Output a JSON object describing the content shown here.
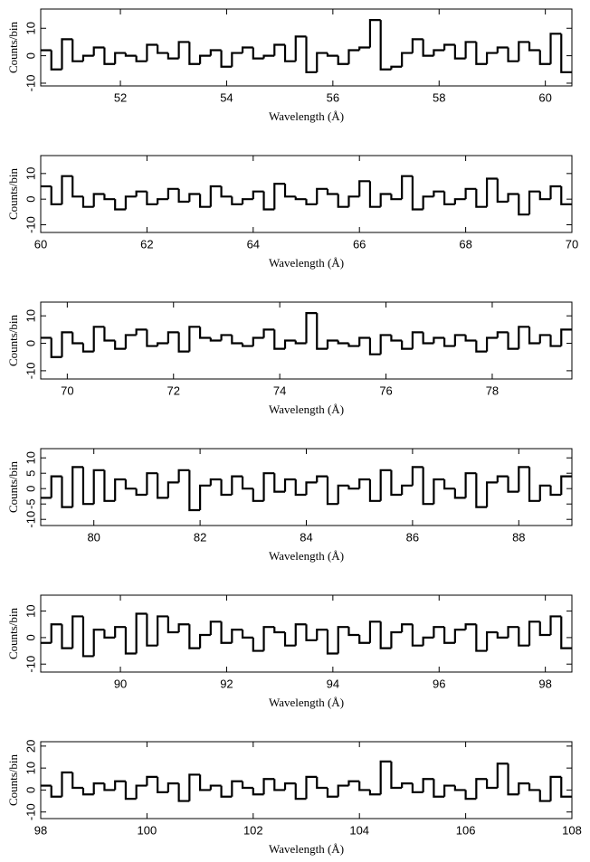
{
  "chart_data": [
    {
      "type": "step",
      "x_label": "Wavelength (Å)",
      "y_label": "Counts/bin",
      "color": "#000000",
      "xlim": [
        50.5,
        60.5
      ],
      "ylim": [
        -11,
        17
      ],
      "xticks": [
        52,
        54,
        56,
        58,
        60
      ],
      "yticks": [
        -10,
        0,
        10
      ],
      "x": [
        50.6,
        50.8,
        51,
        51.2,
        51.4,
        51.6,
        51.8,
        52,
        52.2,
        52.4,
        52.6,
        52.8,
        53,
        53.2,
        53.4,
        53.6,
        53.8,
        54,
        54.2,
        54.4,
        54.6,
        54.8,
        55,
        55.2,
        55.4,
        55.6,
        55.8,
        56,
        56.2,
        56.4,
        56.6,
        56.8,
        57,
        57.2,
        57.4,
        57.6,
        57.8,
        58,
        58.2,
        58.4,
        58.6,
        58.8,
        59,
        59.2,
        59.4,
        59.6,
        59.8,
        60,
        60.2,
        60.4
      ],
      "values": [
        2,
        -5,
        6,
        -2,
        0,
        3,
        -3,
        1,
        0,
        -2,
        4,
        1,
        -1,
        5,
        -3,
        0,
        2,
        -4,
        1,
        3,
        -1,
        0,
        4,
        -2,
        7,
        -6,
        1,
        0,
        -3,
        2,
        3,
        13,
        -5,
        -4,
        1,
        6,
        0,
        2,
        4,
        -1,
        5,
        -3,
        1,
        3,
        -2,
        5,
        2,
        -3,
        8,
        -6
      ]
    },
    {
      "type": "step",
      "x_label": "Wavelength (Å)",
      "y_label": "Counts/bin",
      "color": "#000000",
      "xlim": [
        60,
        70
      ],
      "ylim": [
        -13,
        17
      ],
      "xticks": [
        60,
        62,
        64,
        66,
        68,
        70
      ],
      "yticks": [
        -10,
        0,
        10
      ],
      "x": [
        60.1,
        60.3,
        60.5,
        60.7,
        60.9,
        61.1,
        61.3,
        61.5,
        61.7,
        61.9,
        62.1,
        62.3,
        62.5,
        62.7,
        62.9,
        63.1,
        63.3,
        63.5,
        63.7,
        63.9,
        64.1,
        64.3,
        64.5,
        64.7,
        64.9,
        65.1,
        65.3,
        65.5,
        65.7,
        65.9,
        66.1,
        66.3,
        66.5,
        66.7,
        66.9,
        67.1,
        67.3,
        67.5,
        67.7,
        67.9,
        68.1,
        68.3,
        68.5,
        68.7,
        68.9,
        69.1,
        69.3,
        69.5,
        69.7,
        69.9
      ],
      "values": [
        5,
        -2,
        9,
        1,
        -3,
        2,
        0,
        -4,
        1,
        3,
        -2,
        0,
        4,
        -1,
        2,
        -3,
        5,
        1,
        -2,
        0,
        3,
        -4,
        6,
        1,
        0,
        -2,
        4,
        2,
        -3,
        1,
        7,
        -3,
        2,
        0,
        9,
        -4,
        1,
        3,
        -2,
        0,
        4,
        -3,
        8,
        -1,
        2,
        -6,
        3,
        0,
        5,
        -2
      ]
    },
    {
      "type": "step",
      "x_label": "Wavelength (Å)",
      "y_label": "Counts/bin",
      "color": "#000000",
      "xlim": [
        69.5,
        79.5
      ],
      "ylim": [
        -13,
        15
      ],
      "xticks": [
        70,
        72,
        74,
        76,
        78
      ],
      "yticks": [
        -10,
        0,
        10
      ],
      "x": [
        69.6,
        69.8,
        70,
        70.2,
        70.4,
        70.6,
        70.8,
        71,
        71.2,
        71.4,
        71.6,
        71.8,
        72,
        72.2,
        72.4,
        72.6,
        72.8,
        73,
        73.2,
        73.4,
        73.6,
        73.8,
        74,
        74.2,
        74.4,
        74.6,
        74.8,
        75,
        75.2,
        75.4,
        75.6,
        75.8,
        76,
        76.2,
        76.4,
        76.6,
        76.8,
        77,
        77.2,
        77.4,
        77.6,
        77.8,
        78,
        78.2,
        78.4,
        78.6,
        78.8,
        79,
        79.2,
        79.4
      ],
      "values": [
        2,
        -5,
        4,
        0,
        -3,
        6,
        1,
        -2,
        3,
        5,
        -1,
        0,
        4,
        -3,
        6,
        2,
        1,
        3,
        0,
        -1,
        2,
        5,
        -2,
        1,
        0,
        11,
        -2,
        1,
        0,
        -1,
        2,
        -4,
        3,
        1,
        -2,
        4,
        0,
        2,
        -1,
        3,
        1,
        -3,
        2,
        4,
        -2,
        6,
        0,
        3,
        -1,
        5
      ]
    },
    {
      "type": "step",
      "x_label": "Wavelength (Å)",
      "y_label": "Counts/bin",
      "color": "#000000",
      "xlim": [
        79,
        89
      ],
      "ylim": [
        -12,
        13
      ],
      "xticks": [
        80,
        82,
        84,
        86,
        88
      ],
      "yticks": [
        -10,
        -5,
        0,
        5,
        10
      ],
      "x": [
        79.1,
        79.3,
        79.5,
        79.7,
        79.9,
        80.1,
        80.3,
        80.5,
        80.7,
        80.9,
        81.1,
        81.3,
        81.5,
        81.7,
        81.9,
        82.1,
        82.3,
        82.5,
        82.7,
        82.9,
        83.1,
        83.3,
        83.5,
        83.7,
        83.9,
        84.1,
        84.3,
        84.5,
        84.7,
        84.9,
        85.1,
        85.3,
        85.5,
        85.7,
        85.9,
        86.1,
        86.3,
        86.5,
        86.7,
        86.9,
        87.1,
        87.3,
        87.5,
        87.7,
        87.9,
        88.1,
        88.3,
        88.5,
        88.7,
        88.9
      ],
      "values": [
        -3,
        4,
        -6,
        7,
        -5,
        6,
        -4,
        3,
        0,
        -2,
        5,
        -3,
        2,
        6,
        -7,
        1,
        3,
        -2,
        4,
        0,
        -4,
        5,
        -1,
        3,
        -2,
        2,
        4,
        -5,
        1,
        0,
        3,
        -4,
        6,
        -2,
        1,
        7,
        -5,
        3,
        0,
        -3,
        5,
        -6,
        2,
        4,
        -1,
        7,
        -4,
        1,
        -2,
        4
      ]
    },
    {
      "type": "step",
      "x_label": "Wavelength (Å)",
      "y_label": "Counts/bin",
      "color": "#000000",
      "xlim": [
        88.5,
        98.5
      ],
      "ylim": [
        -13,
        16
      ],
      "xticks": [
        90,
        92,
        94,
        96,
        98
      ],
      "yticks": [
        -10,
        0,
        10
      ],
      "x": [
        88.6,
        88.8,
        89,
        89.2,
        89.4,
        89.6,
        89.8,
        90,
        90.2,
        90.4,
        90.6,
        90.8,
        91,
        91.2,
        91.4,
        91.6,
        91.8,
        92,
        92.2,
        92.4,
        92.6,
        92.8,
        93,
        93.2,
        93.4,
        93.6,
        93.8,
        94,
        94.2,
        94.4,
        94.6,
        94.8,
        95,
        95.2,
        95.4,
        95.6,
        95.8,
        96,
        96.2,
        96.4,
        96.6,
        96.8,
        97,
        97.2,
        97.4,
        97.6,
        97.8,
        98,
        98.2,
        98.4
      ],
      "values": [
        -2,
        5,
        -4,
        8,
        -7,
        3,
        0,
        4,
        -6,
        9,
        -3,
        8,
        2,
        5,
        -4,
        1,
        6,
        -2,
        3,
        0,
        -5,
        4,
        2,
        -3,
        5,
        -1,
        3,
        -6,
        4,
        1,
        -2,
        6,
        -4,
        2,
        5,
        -3,
        0,
        4,
        -2,
        3,
        5,
        -5,
        2,
        0,
        4,
        -3,
        6,
        1,
        8,
        -4
      ]
    },
    {
      "type": "step",
      "x_label": "Wavelength (Å)",
      "y_label": "Counts/bin",
      "color": "#000000",
      "xlim": [
        98,
        108
      ],
      "ylim": [
        -13,
        22
      ],
      "xticks": [
        98,
        100,
        102,
        104,
        106,
        108
      ],
      "yticks": [
        -10,
        0,
        10,
        20
      ],
      "x": [
        98.1,
        98.3,
        98.5,
        98.7,
        98.9,
        99.1,
        99.3,
        99.5,
        99.7,
        99.9,
        100.1,
        100.3,
        100.5,
        100.7,
        100.9,
        101.1,
        101.3,
        101.5,
        101.7,
        101.9,
        102.1,
        102.3,
        102.5,
        102.7,
        102.9,
        103.1,
        103.3,
        103.5,
        103.7,
        103.9,
        104.1,
        104.3,
        104.5,
        104.7,
        104.9,
        105.1,
        105.3,
        105.5,
        105.7,
        105.9,
        106.1,
        106.3,
        106.5,
        106.7,
        106.9,
        107.1,
        107.3,
        107.5,
        107.7,
        107.9
      ],
      "values": [
        2,
        -3,
        8,
        1,
        -2,
        3,
        0,
        4,
        -4,
        2,
        6,
        -1,
        3,
        -5,
        7,
        0,
        2,
        -3,
        4,
        1,
        -2,
        5,
        0,
        3,
        -4,
        6,
        1,
        -3,
        2,
        4,
        0,
        -2,
        13,
        1,
        3,
        -1,
        5,
        -3,
        2,
        0,
        -4,
        5,
        1,
        12,
        -2,
        3,
        0,
        -5,
        6,
        -3
      ]
    }
  ]
}
